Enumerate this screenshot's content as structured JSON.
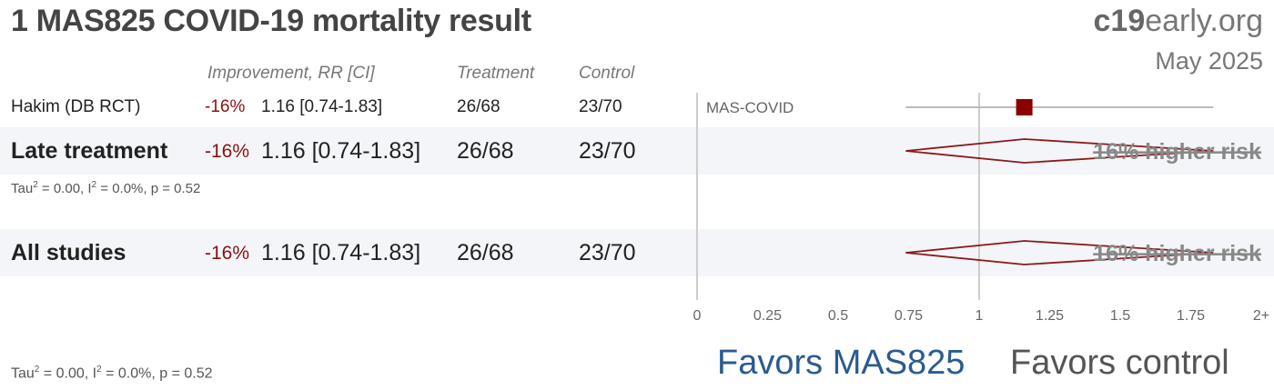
{
  "title": "1 MAS825 COVID-19 mortality result",
  "brand": {
    "prefix": "c19",
    "suffix": "early.org"
  },
  "date": "May 2025",
  "columns": {
    "effect": "Improvement, RR [CI]",
    "treatment": "Treatment",
    "control": "Control"
  },
  "rows": [
    {
      "name": "Hakim (DB RCT)",
      "improvement": "-16%",
      "rr_ci": "1.16 [0.74-1.83]",
      "treatment": "26/68",
      "control": "23/70",
      "trial": "MAS-COVID"
    },
    {
      "name": "Late treatment",
      "improvement": "-16%",
      "rr_ci": "1.16 [0.74-1.83]",
      "treatment": "26/68",
      "control": "23/70",
      "stat": "p = 0.52",
      "risk": "16% higher risk"
    },
    {
      "name": "All studies",
      "improvement": "-16%",
      "rr_ci": "1.16 [0.74-1.83]",
      "treatment": "26/68",
      "control": "23/70",
      "risk": "16% higher risk"
    }
  ],
  "stats": {
    "tau_prefix": "Tau",
    "tau_value": " = 0.00, I",
    "i_value": " = 0.0%, p = 0.52",
    "sup": "2"
  },
  "favors": {
    "left": "Favors MAS825",
    "right": "Favors control"
  },
  "chart_data": {
    "type": "forest",
    "xlim": [
      0,
      2
    ],
    "tick_labels": [
      "0",
      "0.25",
      "0.5",
      "0.75",
      "1",
      "1.25",
      "1.5",
      "1.75",
      "2+"
    ],
    "ticks": [
      0,
      0.25,
      0.5,
      0.75,
      1,
      1.25,
      1.5,
      1.75,
      2
    ],
    "reference_line": 1,
    "studies": [
      {
        "name": "Hakim (DB RCT)",
        "trial": "MAS-COVID",
        "rr": 1.16,
        "ci": [
          0.74,
          1.83
        ]
      }
    ],
    "pooled": [
      {
        "name": "Late treatment",
        "rr": 1.16,
        "ci": [
          0.74,
          1.83
        ]
      },
      {
        "name": "All studies",
        "rr": 1.16,
        "ci": [
          0.74,
          1.83
        ]
      }
    ],
    "colors": {
      "marker": "#8b0000",
      "ci_line": "#bbbbbb",
      "diamond": "#8b1a1a",
      "risk_text": "#888888"
    }
  }
}
